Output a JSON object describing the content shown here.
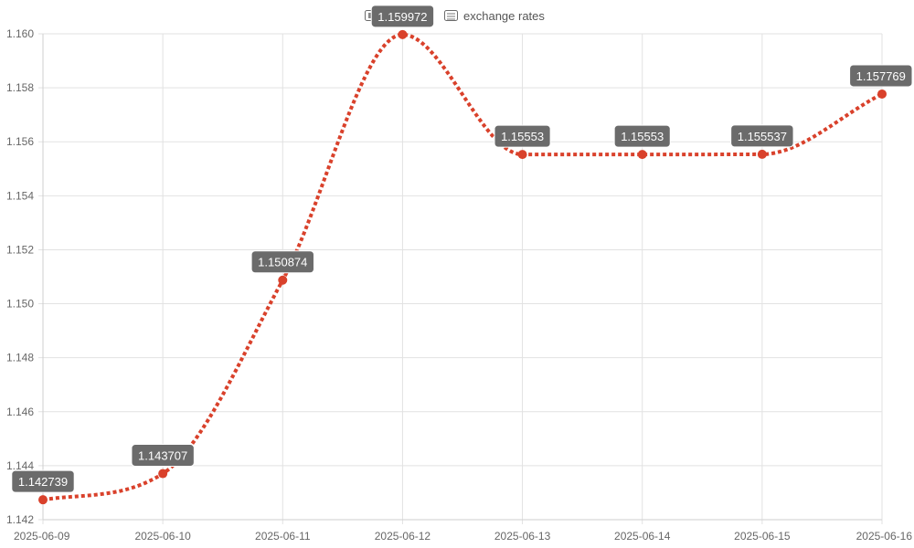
{
  "chart_data": {
    "type": "line",
    "title": "exchange rates",
    "title_icons": [
      "eu-flag-icon",
      "us-flag-icon"
    ],
    "x": [
      "2025-06-09",
      "2025-06-10",
      "2025-06-11",
      "2025-06-12",
      "2025-06-13",
      "2025-06-14",
      "2025-06-15",
      "2025-06-16"
    ],
    "series": [
      {
        "values": [
          1.142739,
          1.143707,
          1.150874,
          1.159972,
          1.15553,
          1.15553,
          1.155537,
          1.157769
        ],
        "data_labels": [
          "1.142739",
          "1.143707",
          "1.150874",
          "1.159972",
          "1.15553",
          "1.15553",
          "1.155537",
          "1.157769"
        ]
      }
    ],
    "yticks": [
      "1.142",
      "1.144",
      "1.146",
      "1.148",
      "1.150",
      "1.152",
      "1.154",
      "1.156",
      "1.158",
      "1.160"
    ],
    "ylim": [
      1.142,
      1.16
    ],
    "grid": true,
    "line_style": "dotted",
    "curve": "smooth",
    "colors": {
      "line": "#d9412b",
      "label_background": "#6b6b6b",
      "label_text": "#ffffff"
    }
  }
}
